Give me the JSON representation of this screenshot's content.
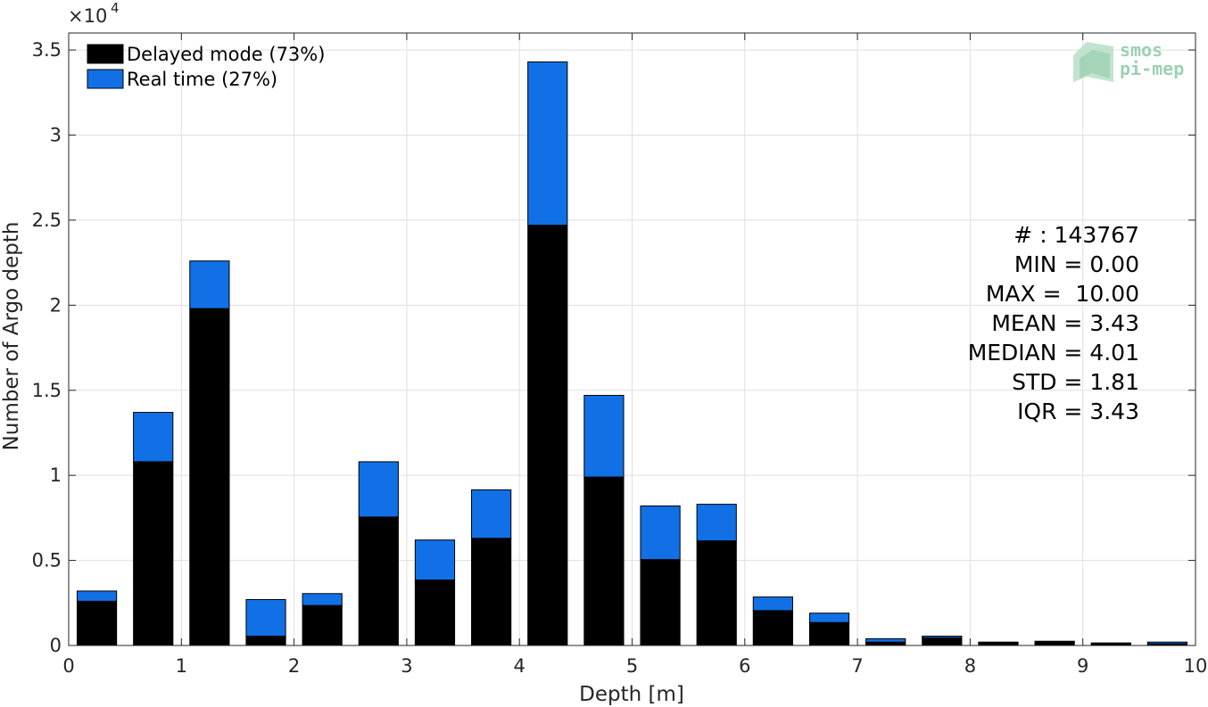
{
  "chart_data": {
    "type": "bar",
    "stacked": true,
    "xlabel": "Depth [m]",
    "ylabel": "Number of Argo depth",
    "y_multiplier": "×10",
    "y_multiplier_exponent": "4",
    "xlim": [
      0,
      10
    ],
    "ylim": [
      0,
      36000
    ],
    "grid": true,
    "legend_position": "top-left",
    "x_ticks": [
      "0",
      "1",
      "2",
      "3",
      "4",
      "5",
      "6",
      "7",
      "8",
      "9",
      "10"
    ],
    "y_ticks": [
      "0",
      "0.5",
      "1",
      "1.5",
      "2",
      "2.5",
      "3",
      "3.5"
    ],
    "bin_width": 0.5,
    "bin_centers": [
      0.25,
      0.75,
      1.25,
      1.75,
      2.25,
      2.75,
      3.25,
      3.75,
      4.25,
      4.75,
      5.25,
      5.75,
      6.25,
      6.75,
      7.25,
      7.75,
      8.25,
      8.75,
      9.25,
      9.75
    ],
    "series": [
      {
        "name": "Delayed mode (73%)",
        "color": "#000000",
        "values": [
          2600,
          10800,
          19800,
          550,
          2350,
          7550,
          3850,
          6300,
          24700,
          9900,
          5050,
          6150,
          2050,
          1350,
          200,
          450,
          150,
          200,
          100,
          100
        ]
      },
      {
        "name": "Real time (27%)",
        "color": "#1170e6",
        "values": [
          600,
          2900,
          2800,
          2150,
          700,
          3250,
          2350,
          2850,
          9600,
          4800,
          3150,
          2150,
          800,
          550,
          200,
          100,
          50,
          50,
          50,
          100
        ]
      }
    ],
    "stats": [
      "# : 143767",
      "MIN = 0.00",
      "MAX =  10.00",
      "MEAN = 3.43",
      "MEDIAN = 4.01",
      "STD = 1.81",
      "IQR = 3.43"
    ]
  },
  "logo": {
    "line1": "smos",
    "line2": "pi-mep",
    "color": "#8cc9a6"
  }
}
